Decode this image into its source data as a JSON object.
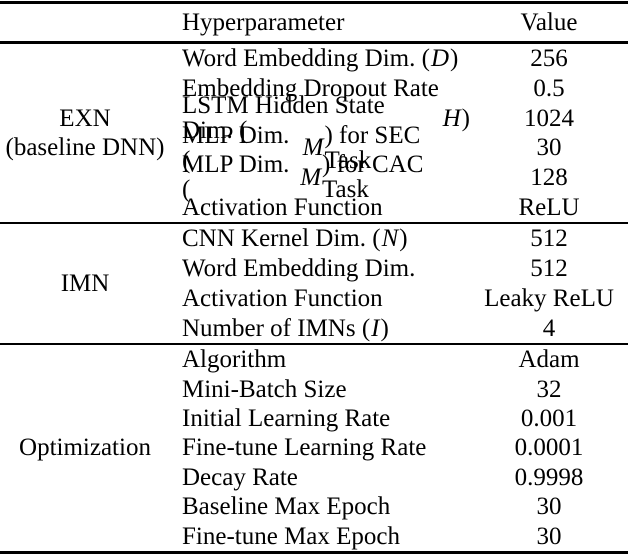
{
  "table": {
    "header": {
      "hyperparameter": "Hyperparameter",
      "value": "Value"
    },
    "sections": [
      {
        "group": {
          "line1": "EXN",
          "line2": "(baseline DNN)"
        },
        "rows": [
          {
            "pre": "Word Embedding Dim. (",
            "var": "D",
            "post": ")",
            "value": "256"
          },
          {
            "pre": "Embedding Dropout Rate",
            "var": "",
            "post": "",
            "value": "0.5"
          },
          {
            "pre": "LSTM Hidden State Dim. (",
            "var": "H",
            "post": ")",
            "value": "1024"
          },
          {
            "pre": "MLP Dim. (",
            "var": "M",
            "post": ") for SEC Task",
            "value": "30"
          },
          {
            "pre": "MLP Dim. (",
            "var": "M",
            "post": ") for CAC Task",
            "value": "128"
          },
          {
            "pre": "Activation Function",
            "var": "",
            "post": "",
            "value": "ReLU"
          }
        ]
      },
      {
        "group": {
          "line1": "IMN",
          "line2": ""
        },
        "rows": [
          {
            "pre": "CNN Kernel Dim. (",
            "var": "N",
            "post": ")",
            "value": "512"
          },
          {
            "pre": "Word Embedding Dim.",
            "var": "",
            "post": "",
            "value": "512"
          },
          {
            "pre": "Activation Function",
            "var": "",
            "post": "",
            "value": "Leaky ReLU"
          },
          {
            "pre": "Number of IMNs (",
            "var": "I",
            "post": ")",
            "value": "4"
          }
        ]
      },
      {
        "group": {
          "line1": "Optimization",
          "line2": ""
        },
        "rows": [
          {
            "pre": "Algorithm",
            "var": "",
            "post": "",
            "value": "Adam"
          },
          {
            "pre": "Mini-Batch Size",
            "var": "",
            "post": "",
            "value": "32"
          },
          {
            "pre": "Initial Learning Rate",
            "var": "",
            "post": "",
            "value": "0.001"
          },
          {
            "pre": "Fine-tune Learning Rate",
            "var": "",
            "post": "",
            "value": "0.0001"
          },
          {
            "pre": "Decay Rate",
            "var": "",
            "post": "",
            "value": "0.9998"
          },
          {
            "pre": "Baseline Max Epoch",
            "var": "",
            "post": "",
            "value": "30"
          },
          {
            "pre": "Fine-tune Max Epoch",
            "var": "",
            "post": "",
            "value": "30"
          }
        ]
      }
    ],
    "colors": {
      "text": "#000000",
      "background": "#ffffff",
      "rule": "#000000"
    }
  }
}
